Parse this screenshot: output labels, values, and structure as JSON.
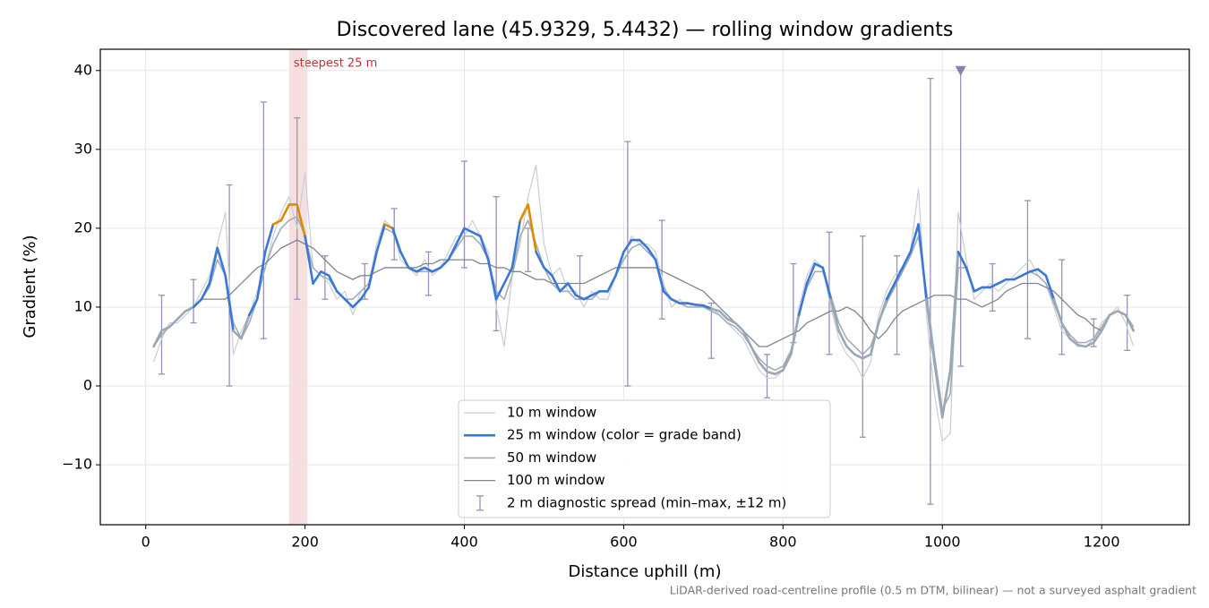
{
  "chart_data": {
    "type": "line",
    "title": "Discovered lane (45.9329, 5.4432) — rolling window gradients",
    "x_label": "Distance uphill (m)",
    "y_label": "Gradient (%)",
    "footnote": "LiDAR-derived road-centreline profile (0.5 m DTM, bilinear) — not a surveyed asphalt gradient",
    "xlim": [
      -57,
      1310
    ],
    "ylim": [
      -17.6,
      42.7
    ],
    "xticks": [
      0,
      200,
      400,
      600,
      800,
      1000,
      1200
    ],
    "yticks": [
      {
        "value": -10,
        "label": "−10"
      },
      0,
      10,
      20,
      30,
      40
    ],
    "grid": true,
    "legend": "lower center",
    "x": [
      10,
      20,
      30,
      40,
      50,
      60,
      70,
      80,
      90,
      100,
      110,
      120,
      130,
      140,
      150,
      160,
      170,
      180,
      190,
      200,
      210,
      220,
      230,
      240,
      250,
      260,
      270,
      280,
      290,
      300,
      310,
      320,
      330,
      340,
      350,
      360,
      370,
      380,
      390,
      400,
      410,
      420,
      430,
      440,
      450,
      460,
      470,
      480,
      490,
      500,
      510,
      520,
      530,
      540,
      550,
      560,
      570,
      580,
      590,
      600,
      610,
      620,
      630,
      640,
      650,
      660,
      670,
      680,
      690,
      700,
      710,
      720,
      730,
      740,
      750,
      760,
      770,
      780,
      790,
      800,
      810,
      820,
      830,
      840,
      850,
      860,
      870,
      880,
      890,
      900,
      910,
      920,
      930,
      940,
      950,
      960,
      970,
      980,
      990,
      1000,
      1010,
      1020,
      1030,
      1040,
      1050,
      1060,
      1070,
      1080,
      1090,
      1100,
      1110,
      1120,
      1130,
      1140,
      1150,
      1160,
      1170,
      1180,
      1190,
      1200,
      1210,
      1220,
      1230,
      1240
    ],
    "series": [
      {
        "name": "10 m window",
        "color": "#c9ced5",
        "width": 1.2,
        "values": [
          3,
          6,
          8,
          8,
          9,
          10,
          12,
          14,
          18,
          22,
          4,
          7,
          9,
          12,
          15,
          19,
          22,
          24,
          20,
          27,
          15,
          14,
          13,
          11,
          12,
          9,
          12,
          13,
          18,
          21,
          20,
          16,
          15,
          14,
          16,
          14,
          15,
          17,
          19,
          19,
          21,
          19,
          17,
          10,
          5,
          14,
          18,
          24,
          28,
          18,
          14,
          15,
          12,
          12,
          10,
          12,
          11,
          11,
          14,
          17,
          19,
          18,
          18,
          17,
          13,
          10,
          11,
          10,
          10,
          10,
          10,
          9,
          8,
          7,
          6,
          4,
          2,
          1,
          1,
          2,
          4,
          10,
          14,
          16,
          15,
          10,
          6,
          4,
          3,
          1,
          3,
          9,
          12,
          14,
          15,
          17,
          25,
          9,
          -1,
          -7,
          -6,
          22,
          16,
          11,
          12,
          13,
          12,
          13,
          14,
          15,
          16,
          14,
          13,
          10,
          7,
          6,
          5,
          5,
          6,
          8,
          9,
          10,
          8,
          5
        ]
      },
      {
        "name": "25 m window (color = grade band)",
        "color": "#3a78d8",
        "width": 2.6,
        "bands": [
          {
            "below": 10,
            "color": "#9aa7b6"
          },
          {
            "from": 20,
            "color": "#e08a00"
          }
        ],
        "values": [
          5,
          7,
          7.5,
          8.5,
          9.5,
          10,
          11,
          13,
          17.5,
          14,
          7,
          6,
          9,
          11,
          17,
          20.5,
          21,
          23,
          23,
          19,
          13,
          14.5,
          14,
          12,
          11,
          10,
          11,
          12.5,
          17,
          20.5,
          20,
          17,
          15,
          14.5,
          15,
          14.5,
          15,
          16,
          18,
          20,
          19.5,
          19,
          16,
          11,
          13,
          15,
          21,
          23,
          17,
          15,
          14,
          12,
          13,
          11.5,
          11,
          11.5,
          12,
          12,
          14,
          17,
          18.5,
          18.5,
          17.5,
          16,
          12,
          11,
          10.5,
          10.5,
          10.3,
          10.2,
          9.8,
          9.5,
          8.5,
          8,
          7,
          5,
          3,
          1.8,
          1.5,
          2,
          4,
          9,
          13,
          15.5,
          15,
          11,
          7,
          5,
          4,
          3.5,
          4,
          8,
          11,
          13,
          15,
          17,
          20.5,
          11,
          3,
          -4,
          2,
          17,
          15,
          12,
          12.5,
          12.5,
          13,
          13.5,
          13.5,
          14,
          14.5,
          14.8,
          14,
          11,
          8,
          6,
          5.2,
          5,
          5.5,
          7,
          9,
          9.5,
          9,
          7
        ]
      },
      {
        "name": "50 m window",
        "color": "#a3acb9",
        "width": 1.6,
        "values": [
          5,
          6.5,
          7.5,
          8.5,
          9.5,
          10,
          11,
          12.5,
          16,
          14,
          8,
          6,
          8,
          11,
          15,
          18,
          20,
          21,
          21.5,
          19,
          15,
          14,
          13.5,
          12,
          11,
          11,
          12,
          13,
          17,
          20,
          19.5,
          17,
          15,
          14.5,
          14.5,
          14.5,
          15,
          16,
          17.5,
          19,
          19,
          18,
          16,
          12,
          11,
          14,
          19,
          21,
          18,
          15,
          13,
          12,
          12,
          11,
          11,
          11,
          12,
          12,
          14,
          16,
          17.5,
          18,
          17,
          16,
          12.5,
          11,
          10.5,
          10,
          10,
          10,
          9.5,
          9,
          8,
          7.5,
          6.5,
          5,
          3.5,
          2.5,
          2,
          2.5,
          4.5,
          9,
          12.5,
          14.5,
          14.5,
          11.5,
          8,
          6,
          5,
          4,
          5,
          8,
          10.5,
          12.5,
          14.5,
          16.5,
          19,
          12,
          4,
          -3,
          -1,
          15,
          15,
          12,
          12.5,
          12.5,
          13,
          13.5,
          13.5,
          14,
          14.5,
          14,
          13,
          10.5,
          8,
          6.5,
          5.5,
          5.5,
          6,
          7.5,
          9,
          9.5,
          9,
          7.5
        ]
      },
      {
        "name": "100 m window",
        "color": "#80858f",
        "width": 1.3,
        "values": [
          null,
          null,
          null,
          null,
          null,
          null,
          11,
          11,
          11,
          11,
          12,
          13,
          14,
          15,
          15.5,
          16.5,
          17.5,
          18,
          18.5,
          18,
          17.5,
          16.5,
          15.5,
          14.5,
          14,
          13.5,
          14,
          14,
          14.5,
          15,
          15,
          15,
          15,
          15,
          15.5,
          15.5,
          16,
          16,
          16,
          16,
          16,
          15.5,
          15.5,
          15,
          15,
          14.5,
          14.5,
          14,
          13.5,
          13.5,
          13,
          13,
          13,
          13,
          13,
          13.5,
          14,
          14.5,
          15,
          15,
          15,
          15,
          15,
          15,
          14.5,
          14,
          13.5,
          13,
          12.5,
          12,
          11,
          10,
          9,
          8,
          7,
          6,
          5,
          5,
          5.5,
          6,
          6.5,
          7,
          8,
          8.5,
          9,
          9.5,
          9.5,
          10,
          9.5,
          8.5,
          7,
          6,
          7,
          8.5,
          9.5,
          10,
          10.5,
          11,
          11.5,
          11.5,
          11.5,
          11,
          11,
          10.5,
          10,
          10.5,
          11,
          12,
          12.5,
          13,
          13,
          13,
          12.5,
          12,
          11,
          10,
          9,
          8.5,
          7.5,
          7,
          null,
          null,
          null,
          null
        ]
      }
    ],
    "errorbars": {
      "name": "2 m diagnostic spread (min–max, ±12 m)",
      "color": "#9b90b8",
      "x": [
        20,
        60,
        105,
        148,
        190,
        225,
        275,
        312,
        355,
        400,
        440,
        480,
        545,
        605,
        648,
        710,
        780,
        813,
        858,
        900,
        943,
        985,
        1023,
        1063,
        1107,
        1150,
        1190,
        1232
      ],
      "lo": [
        1.5,
        8,
        0,
        6,
        11,
        11,
        11,
        16,
        11.5,
        15,
        7,
        14.5,
        11,
        0,
        8.5,
        3.5,
        -1.5,
        5.5,
        4,
        -6.5,
        4,
        -15,
        2.5,
        9.5,
        6,
        4,
        5,
        4.5
      ],
      "hi": [
        11.5,
        13.5,
        25.5,
        36,
        34,
        16.5,
        15.5,
        22.5,
        17,
        28.5,
        24,
        20,
        16.5,
        31,
        21,
        10.5,
        4,
        15.5,
        19.5,
        19,
        16.5,
        39,
        40,
        15.5,
        23.5,
        16,
        8.5,
        11.5
      ]
    },
    "marker": {
      "x": 1023,
      "y": 40,
      "color": "#8a7fb0"
    },
    "span": {
      "x0": 180,
      "x1": 203,
      "label": "steepest 25 m",
      "color": "#e8a0a8",
      "label_color": "#c0303a"
    }
  }
}
